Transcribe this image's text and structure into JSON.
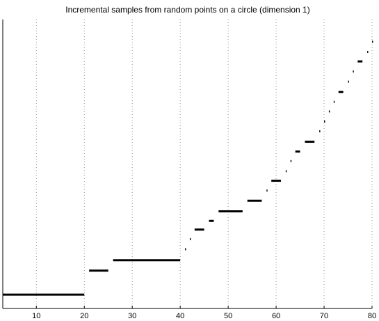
{
  "chart_data": {
    "type": "line",
    "title": "Incremental samples from random points on a circle (dimension 1)",
    "xlabel": "",
    "ylabel": "",
    "xlim": [
      3,
      80
    ],
    "ylim": [
      0,
      1
    ],
    "grid": "x-only",
    "legend": "none",
    "x_ticks": [
      10,
      20,
      30,
      40,
      50,
      60,
      70,
      80
    ],
    "segments": [
      {
        "x": [
          3,
          20
        ],
        "y": 0.048
      },
      {
        "x": [
          21,
          25
        ],
        "y": 0.131
      },
      {
        "x": [
          26,
          40
        ],
        "y": 0.167
      },
      {
        "x": [
          41,
          41.2
        ],
        "y": 0.205
      },
      {
        "x": [
          42,
          42.2
        ],
        "y": 0.24
      },
      {
        "x": [
          43,
          45
        ],
        "y": 0.273
      },
      {
        "x": [
          46,
          47
        ],
        "y": 0.303
      },
      {
        "x": [
          48,
          53
        ],
        "y": 0.336
      },
      {
        "x": [
          54,
          57
        ],
        "y": 0.373
      },
      {
        "x": [
          58,
          58.2
        ],
        "y": 0.408
      },
      {
        "x": [
          59,
          61
        ],
        "y": 0.442
      },
      {
        "x": [
          62,
          62.2
        ],
        "y": 0.475
      },
      {
        "x": [
          63,
          63.2
        ],
        "y": 0.51
      },
      {
        "x": [
          64,
          65
        ],
        "y": 0.543
      },
      {
        "x": [
          66,
          68
        ],
        "y": 0.577
      },
      {
        "x": [
          69,
          69.2
        ],
        "y": 0.613
      },
      {
        "x": [
          70,
          70.2
        ],
        "y": 0.647
      },
      {
        "x": [
          71,
          71.2
        ],
        "y": 0.682
      },
      {
        "x": [
          72,
          72.2
        ],
        "y": 0.715
      },
      {
        "x": [
          73,
          74
        ],
        "y": 0.749
      },
      {
        "x": [
          75,
          75.2
        ],
        "y": 0.785
      },
      {
        "x": [
          76,
          76.2
        ],
        "y": 0.82
      },
      {
        "x": [
          77,
          78
        ],
        "y": 0.855
      },
      {
        "x": [
          79,
          79.2
        ],
        "y": 0.888
      },
      {
        "x": [
          80,
          80.2
        ],
        "y": 0.923
      }
    ]
  }
}
